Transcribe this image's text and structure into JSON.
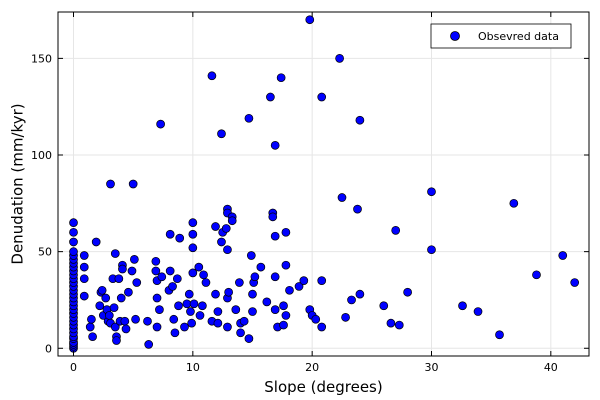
{
  "chart_data": {
    "type": "scatter",
    "title": "",
    "xlabel": "Slope (degrees)",
    "ylabel": "Denudation (mm/kyr)",
    "xlim": [
      -1.3,
      43.2
    ],
    "ylim": [
      -4,
      174
    ],
    "xticks": [
      0,
      10,
      20,
      30,
      40
    ],
    "yticks": [
      0,
      50,
      100,
      150
    ],
    "grid": true,
    "legend_position": "top-right",
    "series": [
      {
        "name": "Obsevred data",
        "color": "#0000ff",
        "points": [
          [
            0,
            0
          ],
          [
            0,
            1
          ],
          [
            0,
            2
          ],
          [
            0,
            3
          ],
          [
            0,
            5
          ],
          [
            0,
            6
          ],
          [
            0,
            8
          ],
          [
            0,
            10
          ],
          [
            0,
            12
          ],
          [
            0,
            14
          ],
          [
            0,
            16
          ],
          [
            0,
            18
          ],
          [
            0,
            20
          ],
          [
            0,
            22
          ],
          [
            0,
            24
          ],
          [
            0,
            26
          ],
          [
            0,
            28
          ],
          [
            0,
            30
          ],
          [
            0,
            32
          ],
          [
            0,
            34
          ],
          [
            0,
            36
          ],
          [
            0,
            38
          ],
          [
            0,
            40
          ],
          [
            0,
            42
          ],
          [
            0,
            44
          ],
          [
            0,
            46
          ],
          [
            0,
            48
          ],
          [
            0,
            50
          ],
          [
            0,
            55
          ],
          [
            0,
            60
          ],
          [
            0,
            65
          ],
          [
            0.9,
            42
          ],
          [
            0.9,
            48
          ],
          [
            0.9,
            36
          ],
          [
            0.9,
            27
          ],
          [
            1.4,
            11
          ],
          [
            1.5,
            15
          ],
          [
            1.6,
            6
          ],
          [
            1.9,
            55
          ],
          [
            2.2,
            22
          ],
          [
            2.3,
            29
          ],
          [
            2.4,
            30
          ],
          [
            2.5,
            17
          ],
          [
            2.7,
            26
          ],
          [
            2.8,
            20
          ],
          [
            2.9,
            14
          ],
          [
            3.0,
            17
          ],
          [
            3.1,
            13
          ],
          [
            3.1,
            85
          ],
          [
            3.3,
            36
          ],
          [
            3.4,
            21
          ],
          [
            3.5,
            11
          ],
          [
            3.5,
            49
          ],
          [
            3.6,
            6
          ],
          [
            3.6,
            4
          ],
          [
            3.8,
            36
          ],
          [
            3.9,
            14
          ],
          [
            4.0,
            26
          ],
          [
            4.1,
            43
          ],
          [
            4.1,
            41
          ],
          [
            4.3,
            14
          ],
          [
            4.4,
            10
          ],
          [
            4.6,
            29
          ],
          [
            4.9,
            40
          ],
          [
            5.0,
            85
          ],
          [
            5.1,
            46
          ],
          [
            5.2,
            15
          ],
          [
            5.3,
            34
          ],
          [
            6.2,
            14
          ],
          [
            6.3,
            2
          ],
          [
            6.9,
            40
          ],
          [
            6.9,
            45
          ],
          [
            7.0,
            35
          ],
          [
            7.0,
            26
          ],
          [
            7.0,
            11
          ],
          [
            7.2,
            20
          ],
          [
            7.3,
            116
          ],
          [
            7.4,
            37
          ],
          [
            8.0,
            30
          ],
          [
            8.1,
            40
          ],
          [
            8.1,
            59
          ],
          [
            8.3,
            32
          ],
          [
            8.4,
            15
          ],
          [
            8.5,
            8
          ],
          [
            8.7,
            36
          ],
          [
            8.8,
            22
          ],
          [
            8.9,
            57
          ],
          [
            9.3,
            11
          ],
          [
            9.5,
            23
          ],
          [
            9.7,
            28
          ],
          [
            9.8,
            19
          ],
          [
            9.9,
            13
          ],
          [
            10.0,
            65
          ],
          [
            10.0,
            59
          ],
          [
            10.0,
            52
          ],
          [
            10.0,
            39
          ],
          [
            10.1,
            23
          ],
          [
            10.5,
            42
          ],
          [
            10.6,
            17
          ],
          [
            10.8,
            22
          ],
          [
            10.9,
            38
          ],
          [
            11.1,
            34
          ],
          [
            11.6,
            141
          ],
          [
            11.6,
            14
          ],
          [
            11.9,
            63
          ],
          [
            11.9,
            28
          ],
          [
            12.1,
            19
          ],
          [
            12.1,
            13
          ],
          [
            12.4,
            111
          ],
          [
            12.4,
            55
          ],
          [
            12.5,
            60
          ],
          [
            12.8,
            62
          ],
          [
            12.9,
            72
          ],
          [
            12.9,
            70
          ],
          [
            12.9,
            51
          ],
          [
            12.9,
            26
          ],
          [
            12.9,
            11
          ],
          [
            13.0,
            29
          ],
          [
            13.3,
            68
          ],
          [
            13.3,
            66
          ],
          [
            13.6,
            20
          ],
          [
            13.9,
            34
          ],
          [
            14.0,
            13
          ],
          [
            14.0,
            8
          ],
          [
            14.3,
            14
          ],
          [
            14.7,
            119
          ],
          [
            14.7,
            5
          ],
          [
            14.9,
            48
          ],
          [
            15.0,
            28
          ],
          [
            15.0,
            19
          ],
          [
            15.1,
            34
          ],
          [
            15.2,
            37
          ],
          [
            15.7,
            42
          ],
          [
            16.2,
            24
          ],
          [
            16.5,
            130
          ],
          [
            16.7,
            70
          ],
          [
            16.7,
            68
          ],
          [
            16.9,
            105
          ],
          [
            16.9,
            58
          ],
          [
            16.9,
            37
          ],
          [
            16.9,
            20
          ],
          [
            17.1,
            11
          ],
          [
            17.4,
            140
          ],
          [
            17.6,
            22
          ],
          [
            17.6,
            12
          ],
          [
            17.8,
            60
          ],
          [
            17.8,
            43
          ],
          [
            17.8,
            17
          ],
          [
            18.1,
            30
          ],
          [
            18.9,
            32
          ],
          [
            19.3,
            35
          ],
          [
            19.8,
            20
          ],
          [
            19.8,
            170
          ],
          [
            20.0,
            17
          ],
          [
            20.3,
            15
          ],
          [
            20.8,
            130
          ],
          [
            20.8,
            35
          ],
          [
            20.8,
            11
          ],
          [
            22.3,
            150
          ],
          [
            22.5,
            78
          ],
          [
            23.3,
            25
          ],
          [
            23.8,
            72
          ],
          [
            24.0,
            118
          ],
          [
            24.0,
            28
          ],
          [
            22.8,
            16
          ],
          [
            26.0,
            22
          ],
          [
            26.6,
            13
          ],
          [
            27.0,
            61
          ],
          [
            27.3,
            12
          ],
          [
            28.0,
            29
          ],
          [
            30.0,
            81
          ],
          [
            30.0,
            51
          ],
          [
            32.6,
            22
          ],
          [
            33.9,
            19
          ],
          [
            35.7,
            7
          ],
          [
            36.9,
            75
          ],
          [
            38.8,
            38
          ],
          [
            41.0,
            48
          ],
          [
            42.0,
            34
          ]
        ]
      }
    ]
  }
}
